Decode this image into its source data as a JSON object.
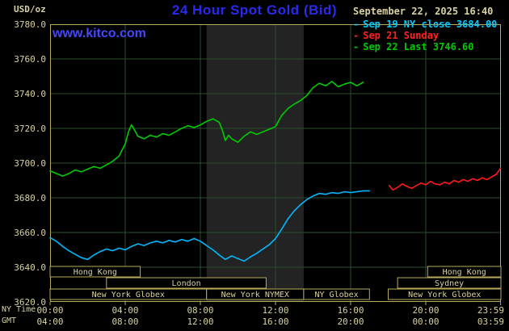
{
  "colors": {
    "background": "#000000",
    "khaki_text": "#d8d1a0",
    "title_blue": "#2a2aee",
    "watermark_blue": "#4646ff"
  },
  "header": {
    "units_label": "USD/oz",
    "title": "24 Hour Spot Gold (Bid)",
    "datetime": "September 22, 2025 16:40",
    "watermark": "www.kitco.com"
  },
  "legend": {
    "entries": [
      {
        "marker": "-",
        "label": "Sep 19 NY close 3684.00",
        "color": "#00ccff"
      },
      {
        "marker": "-",
        "label": "Sep 21 Sunday",
        "color": "#ff2222"
      },
      {
        "marker": "-",
        "label": "Sep 22 Last 3746.60",
        "color": "#00cc00"
      }
    ]
  },
  "axes": {
    "x_row_labels": [
      "NY Time",
      "GMT"
    ]
  },
  "chart_data": {
    "type": "line",
    "title": "24 Hour Spot Gold (Bid)",
    "ylabel": "USD/oz",
    "xlim_hours": [
      0,
      24
    ],
    "ylim": [
      3620,
      3780
    ],
    "y_grid_step": 20,
    "grid_color": "#2e4e2e",
    "frame_color": "#b9ab5e",
    "text_color": "#d8d1a0",
    "y_ticks": [
      {
        "value": 3780,
        "label": "3780.0"
      },
      {
        "value": 3760,
        "label": "3760.0"
      },
      {
        "value": 3740,
        "label": "3740.0"
      },
      {
        "value": 3720,
        "label": "3720.0"
      },
      {
        "value": 3700,
        "label": "3700.0"
      },
      {
        "value": 3680,
        "label": "3680.0"
      },
      {
        "value": 3660,
        "label": "3660.0"
      },
      {
        "value": 3640,
        "label": "3640.0"
      },
      {
        "value": 3620,
        "label": "3620.0"
      }
    ],
    "x_grid_hours": [
      4,
      8,
      12,
      16,
      20
    ],
    "x_ticks": [
      {
        "hour": 0,
        "ny": "00:00",
        "gmt": "04:00"
      },
      {
        "hour": 4,
        "ny": "04:00",
        "gmt": "08:00"
      },
      {
        "hour": 8,
        "ny": "08:00",
        "gmt": "12:00"
      },
      {
        "hour": 12,
        "ny": "12:00",
        "gmt": "16:00"
      },
      {
        "hour": 16,
        "ny": "16:00",
        "gmt": "20:00"
      },
      {
        "hour": 20,
        "ny": "20:00",
        "gmt": "00:00"
      },
      {
        "hour": 23.983,
        "ny": "23:59",
        "gmt": "03:59"
      }
    ],
    "band": {
      "label": "New York NYMEX floor session",
      "start": 8.33,
      "end": 13.5,
      "color": "#232323"
    },
    "sessions": [
      {
        "row": 0,
        "label": "Hong Kong",
        "start": 0,
        "end": 4.8
      },
      {
        "row": 0,
        "label": "Hong Kong",
        "start": 20.1,
        "end": 24
      },
      {
        "row": 1,
        "label": "London",
        "start": 3.0,
        "end": 11.5
      },
      {
        "row": 1,
        "label": "Sydney",
        "start": 18.5,
        "end": 24
      },
      {
        "row": 2,
        "label": "New York Globex",
        "start": 0,
        "end": 8.33
      },
      {
        "row": 2,
        "label": "New York NYMEX",
        "start": 8.33,
        "end": 13.5
      },
      {
        "row": 2,
        "label": "NY Globex",
        "start": 13.5,
        "end": 17.0
      },
      {
        "row": 2,
        "label": "New York Globex",
        "start": 18.0,
        "end": 24
      }
    ],
    "series": [
      {
        "id": "sep19",
        "name": "Sep 19 NY close",
        "end_value": 3684.0,
        "color": "#00b8ff",
        "points": [
          [
            0,
            3657
          ],
          [
            0.33,
            3655
          ],
          [
            0.67,
            3652
          ],
          [
            1,
            3649.5
          ],
          [
            1.33,
            3647.5
          ],
          [
            1.67,
            3645.5
          ],
          [
            2,
            3644.5
          ],
          [
            2.33,
            3647
          ],
          [
            2.67,
            3649
          ],
          [
            3,
            3650.5
          ],
          [
            3.33,
            3649.5
          ],
          [
            3.67,
            3651
          ],
          [
            4,
            3650
          ],
          [
            4.33,
            3652
          ],
          [
            4.67,
            3653.5
          ],
          [
            5,
            3652.5
          ],
          [
            5.33,
            3654
          ],
          [
            5.67,
            3655
          ],
          [
            6,
            3654
          ],
          [
            6.33,
            3655.5
          ],
          [
            6.67,
            3654.5
          ],
          [
            7,
            3656
          ],
          [
            7.33,
            3655
          ],
          [
            7.67,
            3656.5
          ],
          [
            8,
            3655
          ],
          [
            8.33,
            3652.5
          ],
          [
            8.67,
            3650
          ],
          [
            9,
            3647
          ],
          [
            9.33,
            3644.5
          ],
          [
            9.67,
            3646.5
          ],
          [
            10,
            3645
          ],
          [
            10.33,
            3643.5
          ],
          [
            10.67,
            3646
          ],
          [
            11,
            3648
          ],
          [
            11.33,
            3650.5
          ],
          [
            11.67,
            3653
          ],
          [
            12,
            3656.5
          ],
          [
            12.33,
            3662
          ],
          [
            12.67,
            3668
          ],
          [
            13,
            3672.5
          ],
          [
            13.33,
            3676
          ],
          [
            13.67,
            3679
          ],
          [
            14,
            3681
          ],
          [
            14.33,
            3682.5
          ],
          [
            14.67,
            3682
          ],
          [
            15,
            3683
          ],
          [
            15.33,
            3682.5
          ],
          [
            15.67,
            3683.5
          ],
          [
            16,
            3683
          ],
          [
            16.33,
            3683.5
          ],
          [
            16.67,
            3684
          ],
          [
            17,
            3684
          ]
        ]
      },
      {
        "id": "sep21",
        "name": "Sep 21 Sunday",
        "end_value": 3697,
        "color": "#ff1a1a",
        "points": [
          [
            18.05,
            3687
          ],
          [
            18.25,
            3684.5
          ],
          [
            18.5,
            3686
          ],
          [
            18.75,
            3688
          ],
          [
            19,
            3686.5
          ],
          [
            19.25,
            3685.5
          ],
          [
            19.5,
            3687
          ],
          [
            19.75,
            3688.5
          ],
          [
            20,
            3687.5
          ],
          [
            20.25,
            3689.5
          ],
          [
            20.5,
            3688
          ],
          [
            20.75,
            3687.5
          ],
          [
            21,
            3689
          ],
          [
            21.25,
            3688
          ],
          [
            21.5,
            3690
          ],
          [
            21.75,
            3689
          ],
          [
            22,
            3690.5
          ],
          [
            22.25,
            3689.5
          ],
          [
            22.5,
            3691
          ],
          [
            22.75,
            3690
          ],
          [
            23,
            3691.5
          ],
          [
            23.25,
            3690.5
          ],
          [
            23.5,
            3692
          ],
          [
            23.75,
            3693.5
          ],
          [
            23.98,
            3697
          ]
        ]
      },
      {
        "id": "sep22",
        "name": "Sep 22 Last",
        "end_value": 3746.6,
        "color": "#00cc00",
        "points": [
          [
            0,
            3695.5
          ],
          [
            0.33,
            3694
          ],
          [
            0.67,
            3692.5
          ],
          [
            1,
            3694
          ],
          [
            1.33,
            3696
          ],
          [
            1.67,
            3695
          ],
          [
            2,
            3696.5
          ],
          [
            2.33,
            3698
          ],
          [
            2.67,
            3697
          ],
          [
            3,
            3699
          ],
          [
            3.33,
            3701
          ],
          [
            3.67,
            3704
          ],
          [
            4,
            3711
          ],
          [
            4.17,
            3718
          ],
          [
            4.33,
            3722
          ],
          [
            4.5,
            3719
          ],
          [
            4.67,
            3715.5
          ],
          [
            5,
            3714
          ],
          [
            5.33,
            3716
          ],
          [
            5.67,
            3715
          ],
          [
            6,
            3717
          ],
          [
            6.33,
            3716
          ],
          [
            6.67,
            3718
          ],
          [
            7,
            3720
          ],
          [
            7.33,
            3721.5
          ],
          [
            7.67,
            3720.5
          ],
          [
            8,
            3722
          ],
          [
            8.33,
            3724
          ],
          [
            8.67,
            3725.5
          ],
          [
            9,
            3723.5
          ],
          [
            9.17,
            3719
          ],
          [
            9.33,
            3713
          ],
          [
            9.5,
            3716
          ],
          [
            9.67,
            3714
          ],
          [
            10,
            3712
          ],
          [
            10.33,
            3715.5
          ],
          [
            10.67,
            3718
          ],
          [
            11,
            3716.5
          ],
          [
            11.33,
            3718
          ],
          [
            11.67,
            3719.5
          ],
          [
            12,
            3721
          ],
          [
            12.33,
            3727.5
          ],
          [
            12.67,
            3731.5
          ],
          [
            13,
            3734
          ],
          [
            13.33,
            3736
          ],
          [
            13.67,
            3739
          ],
          [
            14,
            3743.5
          ],
          [
            14.33,
            3746
          ],
          [
            14.67,
            3744.5
          ],
          [
            15,
            3747
          ],
          [
            15.33,
            3744
          ],
          [
            15.67,
            3745.5
          ],
          [
            16,
            3746.5
          ],
          [
            16.33,
            3744.5
          ],
          [
            16.67,
            3746.6
          ]
        ]
      }
    ]
  }
}
